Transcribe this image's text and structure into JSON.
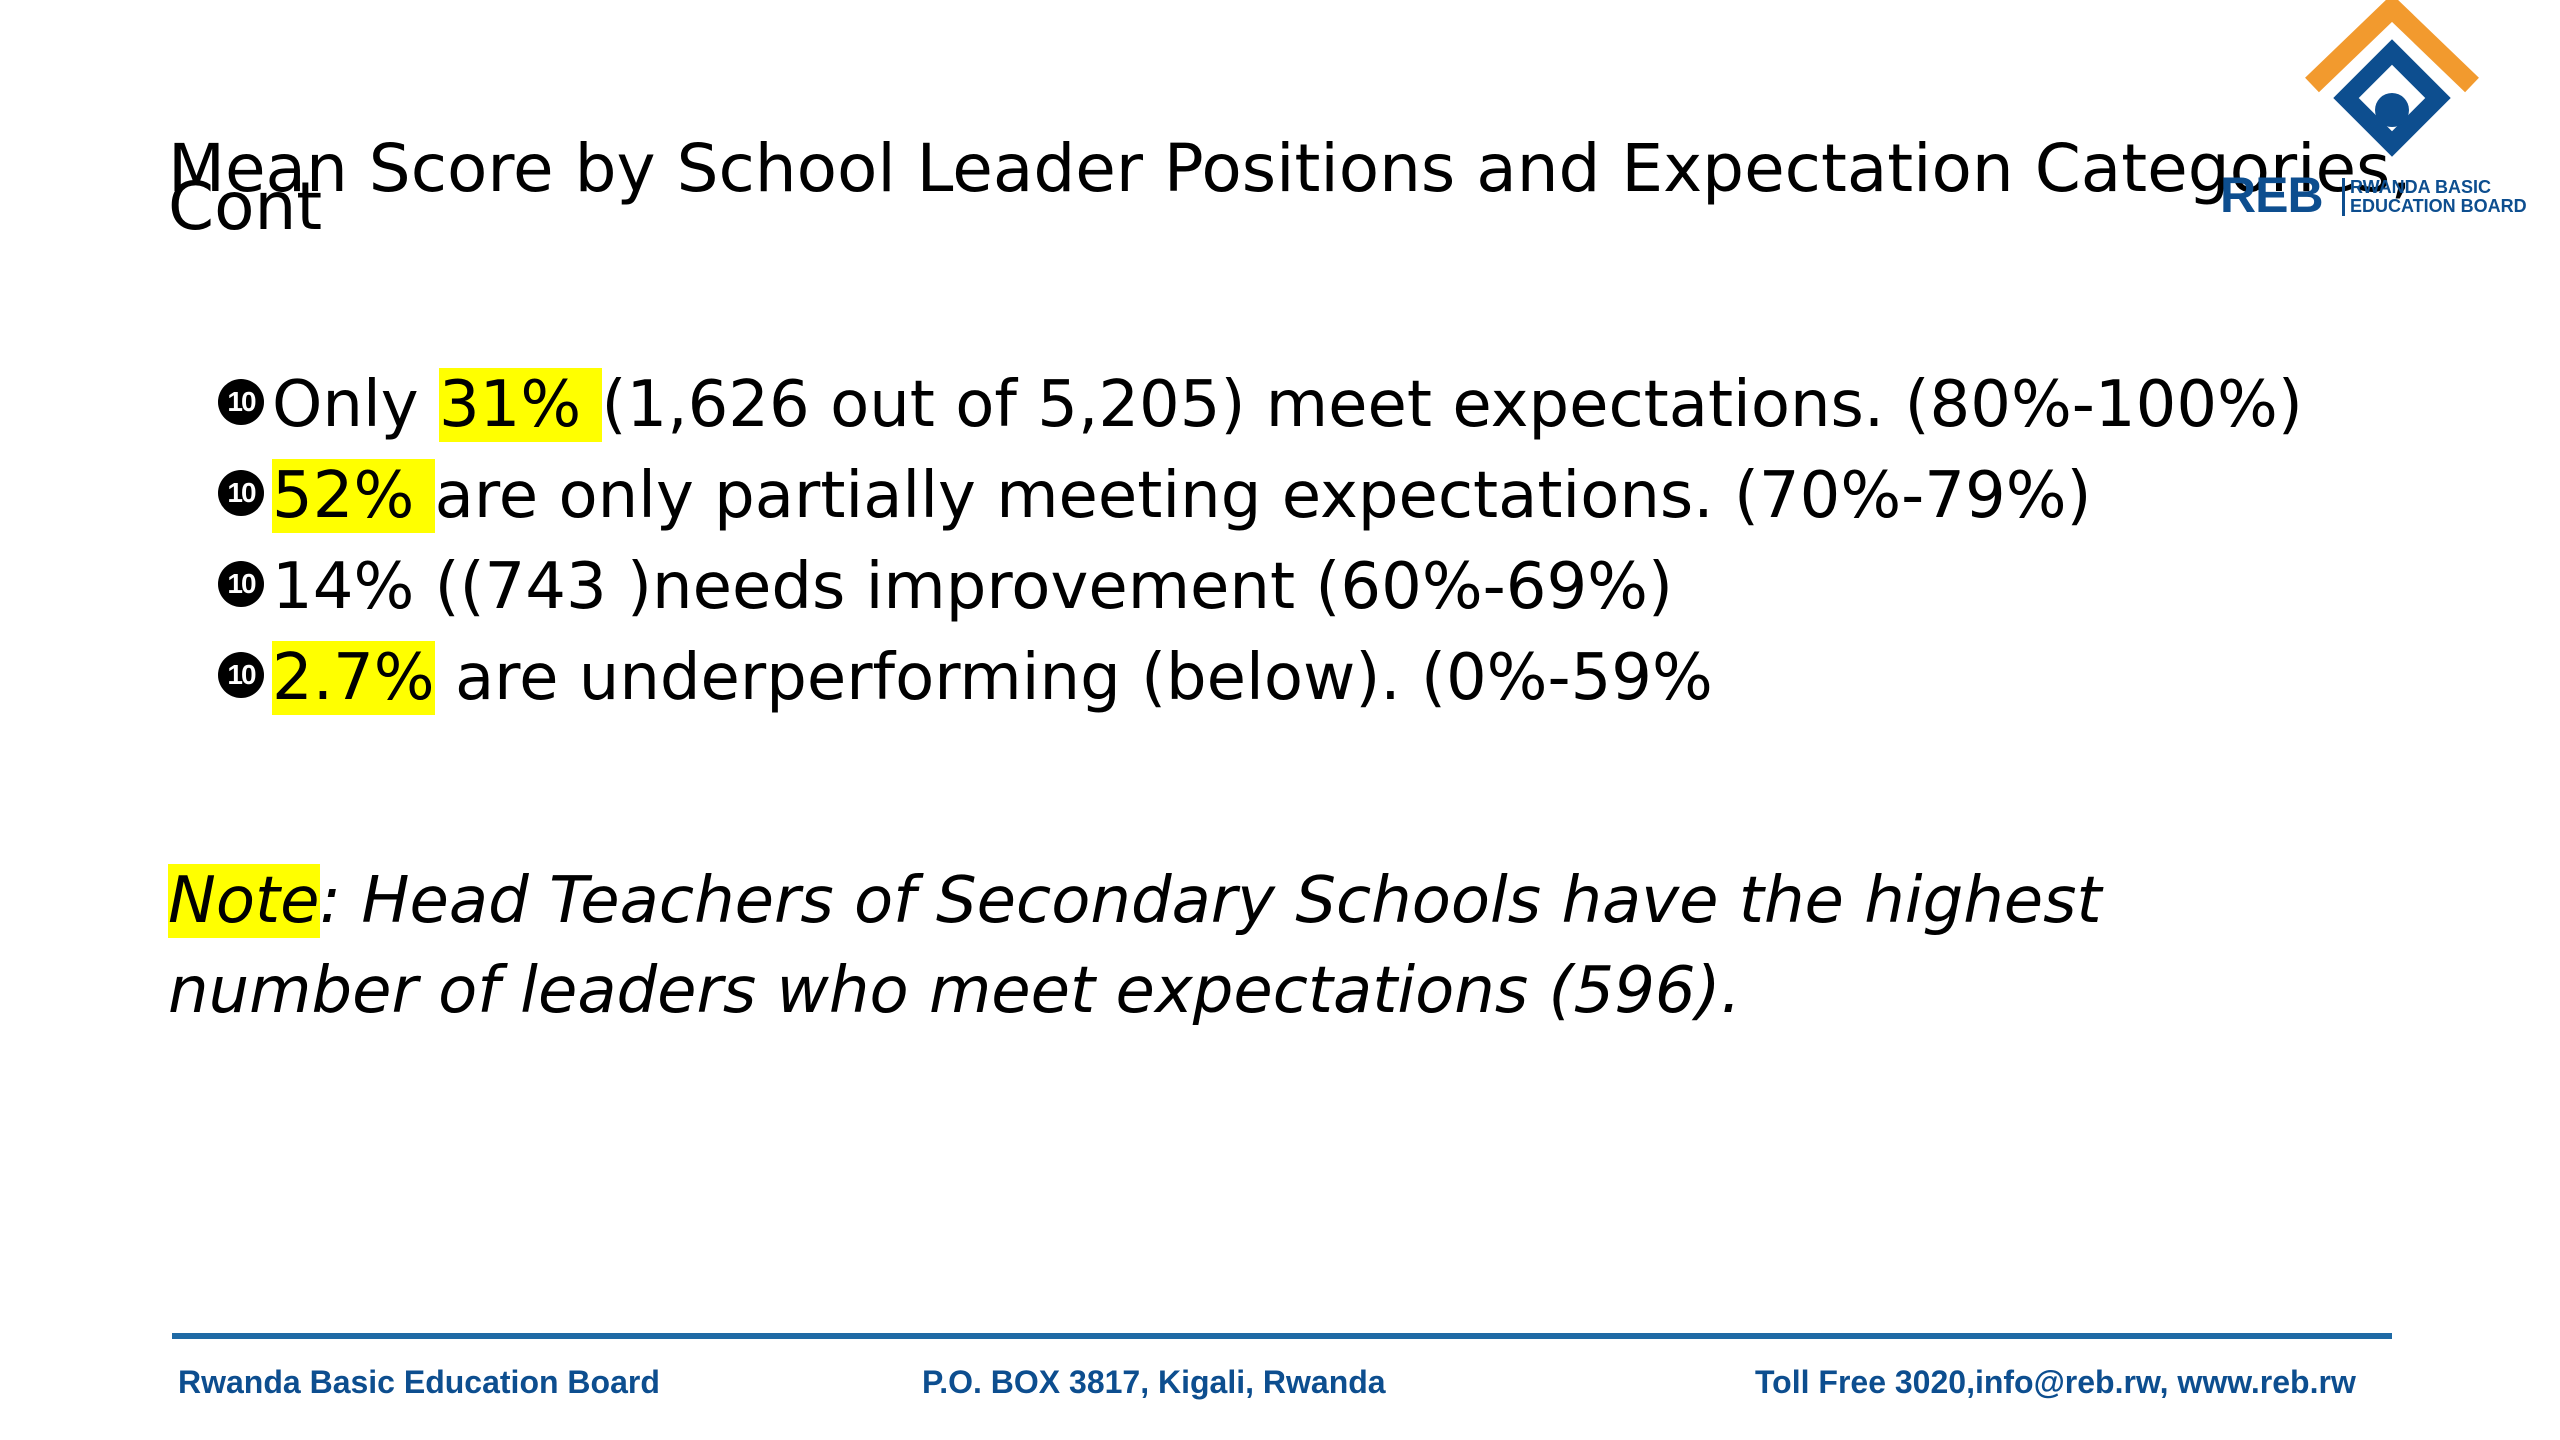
{
  "slide": {
    "title_line1": "Mean Score by School Leader Positions and Expectation Categories,",
    "title_line2": "Cont"
  },
  "logo": {
    "letters": "REB",
    "name_line1": "RWANDA BASIC",
    "name_line2": "EDUCATION BOARD",
    "colors": {
      "orange": "#f29a2e",
      "blue": "#0d4e8f"
    }
  },
  "bullet_marker": "10",
  "bullets": [
    {
      "prefix": "Only ",
      "highlight": "31% ",
      "suffix": "(1,626 out of 5,205) meet expectations. (80%-100%)"
    },
    {
      "prefix": "",
      "highlight": "52% ",
      "suffix": "are only partially meeting expectations. (70%-79%)"
    },
    {
      "prefix": "14% ((743 )needs improvement (60%-69%)",
      "highlight": "",
      "suffix": ""
    },
    {
      "prefix": "",
      "highlight": "2.7%",
      "suffix": " are underperforming (below). (0%-59%"
    }
  ],
  "note": {
    "label": "Note",
    "text": ": Head Teachers of Secondary Schools have the highest number of leaders who meet expectations (596)."
  },
  "footer": {
    "left": "Rwanda Basic Education Board",
    "center": "P.O. BOX 3817, Kigali, Rwanda",
    "right": "Toll Free 3020,info@reb.rw,  www.reb.rw"
  },
  "colors": {
    "highlight": "#ffff00",
    "footer_rule": "#1f6aa5",
    "footer_text": "#0d4e8f"
  }
}
